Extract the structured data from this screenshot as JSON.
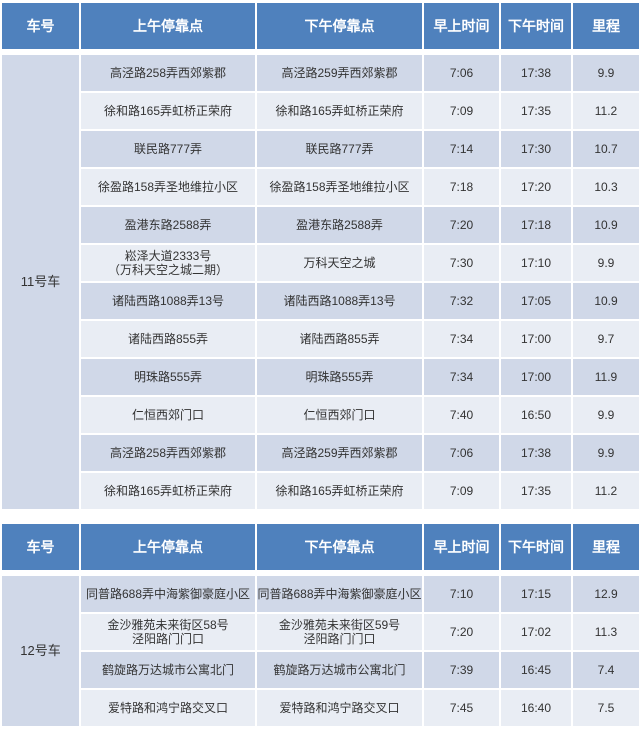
{
  "headers": [
    "车号",
    "上午停靠点",
    "下午停靠点",
    "早上时间",
    "下午时间",
    "里程"
  ],
  "tables": [
    {
      "car": "11号车",
      "rows": [
        {
          "am_stop": "高泾路258弄西郊紫郡",
          "pm_stop": "高泾路259弄西郊紫郡",
          "am_time": "7:06",
          "pm_time": "17:38",
          "distance": "9.9"
        },
        {
          "am_stop": "徐和路165弄虹桥正荣府",
          "pm_stop": "徐和路165弄虹桥正荣府",
          "am_time": "7:09",
          "pm_time": "17:35",
          "distance": "11.2"
        },
        {
          "am_stop": "联民路777弄",
          "pm_stop": "联民路777弄",
          "am_time": "7:14",
          "pm_time": "17:30",
          "distance": "10.7"
        },
        {
          "am_stop": "徐盈路158弄圣地维拉小区",
          "pm_stop": "徐盈路158弄圣地维拉小区",
          "am_time": "7:18",
          "pm_time": "17:20",
          "distance": "10.3"
        },
        {
          "am_stop": "盈港东路2588弄",
          "pm_stop": "盈港东路2588弄",
          "am_time": "7:20",
          "pm_time": "17:18",
          "distance": "10.9"
        },
        {
          "am_stop": "崧泽大道2333号\n（万科天空之城二期）",
          "pm_stop": "万科天空之城",
          "am_time": "7:30",
          "pm_time": "17:10",
          "distance": "9.9"
        },
        {
          "am_stop": "诸陆西路1088弄13号",
          "pm_stop": "诸陆西路1088弄13号",
          "am_time": "7:32",
          "pm_time": "17:05",
          "distance": "10.9"
        },
        {
          "am_stop": "诸陆西路855弄",
          "pm_stop": "诸陆西路855弄",
          "am_time": "7:34",
          "pm_time": "17:00",
          "distance": "9.7"
        },
        {
          "am_stop": "明珠路555弄",
          "pm_stop": "明珠路555弄",
          "am_time": "7:34",
          "pm_time": "17:00",
          "distance": "11.9"
        },
        {
          "am_stop": "仁恒西郊门口",
          "pm_stop": "仁恒西郊门口",
          "am_time": "7:40",
          "pm_time": "16:50",
          "distance": "9.9"
        },
        {
          "am_stop": "高泾路258弄西郊紫郡",
          "pm_stop": "高泾路259弄西郊紫郡",
          "am_time": "7:06",
          "pm_time": "17:38",
          "distance": "9.9"
        },
        {
          "am_stop": "徐和路165弄虹桥正荣府",
          "pm_stop": "徐和路165弄虹桥正荣府",
          "am_time": "7:09",
          "pm_time": "17:35",
          "distance": "11.2"
        }
      ]
    },
    {
      "car": "12号车",
      "rows": [
        {
          "am_stop": "同普路688弄中海紫御豪庭小区",
          "pm_stop": "同普路688弄中海紫御豪庭小区",
          "am_time": "7:10",
          "pm_time": "17:15",
          "distance": "12.9"
        },
        {
          "am_stop": "金沙雅苑未来街区58号\n泾阳路门门口",
          "pm_stop": "金沙雅苑未来街区59号\n泾阳路门门口",
          "am_time": "7:20",
          "pm_time": "17:02",
          "distance": "11.3"
        },
        {
          "am_stop": "鹤旋路万达城市公寓北门",
          "pm_stop": "鹤旋路万达城市公寓北门",
          "am_time": "7:39",
          "pm_time": "16:45",
          "distance": "7.4"
        },
        {
          "am_stop": "爱特路和鸿宁路交叉口",
          "pm_stop": "爱特路和鸿宁路交叉口",
          "am_time": "7:45",
          "pm_time": "16:40",
          "distance": "7.5"
        }
      ]
    }
  ]
}
